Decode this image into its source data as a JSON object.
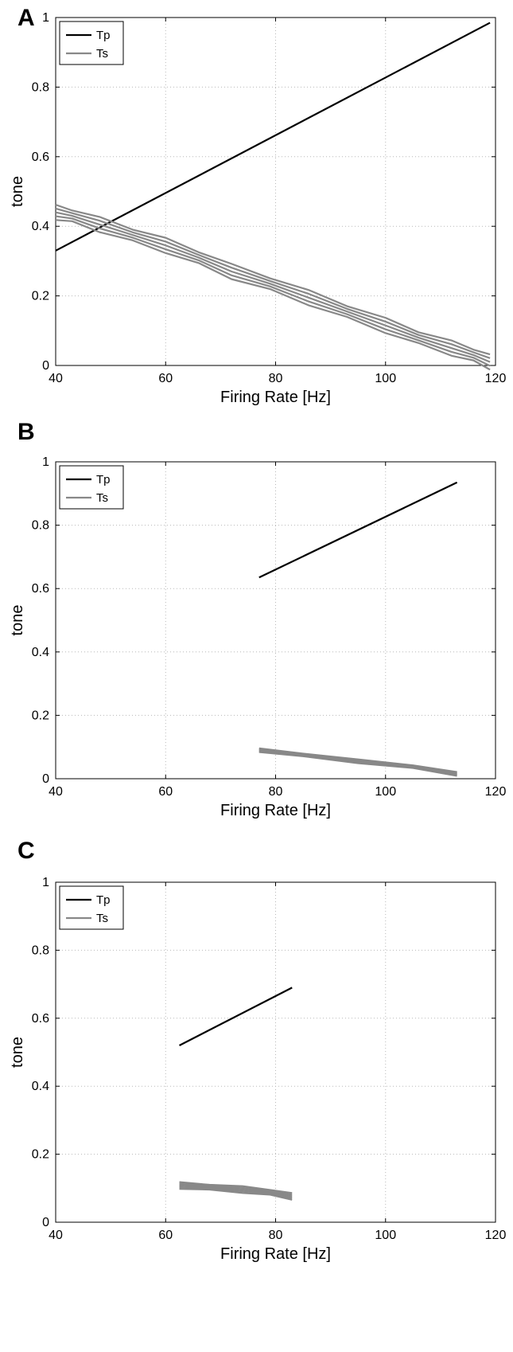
{
  "chart_data": [
    {
      "type": "line",
      "panel": "A",
      "xlabel": "Firing Rate [Hz]",
      "ylabel": "tone",
      "xlim": [
        40,
        120
      ],
      "ylim": [
        0,
        1
      ],
      "xticks": [
        "40",
        "60",
        "80",
        "100",
        "120"
      ],
      "yticks": [
        "0",
        "0.2",
        "0.4",
        "0.6",
        "0.8",
        "1"
      ],
      "grid": true,
      "legend": "top-left",
      "series": [
        {
          "name": "Tp",
          "color": "#000000",
          "x": [
            40,
            119
          ],
          "y": [
            0.33,
            0.985
          ]
        },
        {
          "name": "Ts",
          "color": "#888888",
          "x": [
            40,
            43,
            48,
            54,
            60,
            66,
            72,
            79,
            86,
            93,
            100,
            106,
            112,
            116,
            119
          ],
          "y": [
            0.44,
            0.43,
            0.405,
            0.375,
            0.345,
            0.31,
            0.27,
            0.235,
            0.195,
            0.155,
            0.115,
            0.08,
            0.05,
            0.03,
            0.01
          ],
          "band": 0.022
        }
      ]
    },
    {
      "type": "line",
      "panel": "B",
      "xlabel": "Firing Rate [Hz]",
      "ylabel": "tone",
      "xlim": [
        40,
        120
      ],
      "ylim": [
        0,
        1
      ],
      "xticks": [
        "40",
        "60",
        "80",
        "100",
        "120"
      ],
      "yticks": [
        "0",
        "0.2",
        "0.4",
        "0.6",
        "0.8",
        "1"
      ],
      "grid": true,
      "legend": "top-left",
      "series": [
        {
          "name": "Tp",
          "color": "#000000",
          "x": [
            77,
            113
          ],
          "y": [
            0.635,
            0.935
          ]
        },
        {
          "name": "Ts",
          "color": "#888888",
          "x": [
            77,
            85,
            95,
            105,
            113
          ],
          "y": [
            0.09,
            0.075,
            0.055,
            0.038,
            0.015
          ],
          "band": 0.006
        }
      ]
    },
    {
      "type": "line",
      "panel": "C",
      "xlabel": "Firing Rate [Hz]",
      "ylabel": "tone",
      "xlim": [
        40,
        120
      ],
      "ylim": [
        0,
        1
      ],
      "xticks": [
        "40",
        "60",
        "80",
        "100",
        "120"
      ],
      "yticks": [
        "0",
        "0.2",
        "0.4",
        "0.6",
        "0.8",
        "1"
      ],
      "grid": true,
      "legend": "top-left",
      "series": [
        {
          "name": "Tp",
          "color": "#000000",
          "x": [
            62.5,
            83
          ],
          "y": [
            0.52,
            0.69
          ]
        },
        {
          "name": "Ts",
          "color": "#888888",
          "x": [
            62.5,
            68,
            74,
            79,
            83
          ],
          "y": [
            0.108,
            0.103,
            0.096,
            0.088,
            0.076
          ],
          "band": 0.01
        }
      ]
    }
  ]
}
